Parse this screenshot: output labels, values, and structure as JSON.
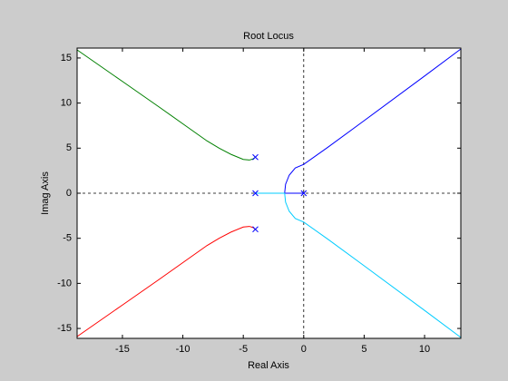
{
  "chart_data": {
    "type": "line",
    "title": "Root Locus",
    "x_label": "Real Axis",
    "y_label": "Imag Axis",
    "xlim": [
      -18.75,
      13
    ],
    "ylim": [
      -16.1,
      16.1
    ],
    "xticks": [
      -15,
      -10,
      -5,
      0,
      5,
      10
    ],
    "yticks": [
      -15,
      -10,
      -5,
      0,
      5,
      10,
      15
    ],
    "series": [
      {
        "color": "#008000",
        "x": [
          -4,
          -4.2,
          -4.5,
          -5,
          -6,
          -7,
          -8,
          -10,
          -12,
          -15,
          -18.75
        ],
        "y": [
          4,
          3.8,
          3.68,
          3.75,
          4.3,
          5.0,
          5.8,
          7.7,
          9.6,
          12.4,
          15.9
        ]
      },
      {
        "color": "#ff0000",
        "x": [
          -4,
          -4.2,
          -4.5,
          -5,
          -6,
          -7,
          -8,
          -10,
          -12,
          -15,
          -18.75
        ],
        "y": [
          -4,
          -3.8,
          -3.68,
          -3.75,
          -4.3,
          -5.0,
          -5.8,
          -7.7,
          -9.6,
          -12.4,
          -15.9
        ]
      },
      {
        "color": "#0000ff",
        "x": [
          0,
          -1.58,
          -1.5,
          -1.2,
          -0.7,
          0,
          2,
          5,
          10,
          13
        ],
        "y": [
          0,
          0,
          1,
          2,
          2.8,
          3.2,
          5.1,
          8.05,
          13.0,
          16.0
        ]
      },
      {
        "color": "#00ccff",
        "x": [
          -4,
          -1.58,
          -1.5,
          -1.2,
          -0.7,
          0,
          2,
          5,
          10,
          13
        ],
        "y": [
          0,
          0,
          -1,
          -2,
          -2.8,
          -3.2,
          -5.1,
          -8.05,
          -13.0,
          -16.0
        ]
      }
    ],
    "poles": {
      "color": "#0000ff",
      "x": [
        0,
        -4,
        -4,
        -4
      ],
      "y": [
        0,
        0,
        4,
        -4
      ]
    }
  }
}
